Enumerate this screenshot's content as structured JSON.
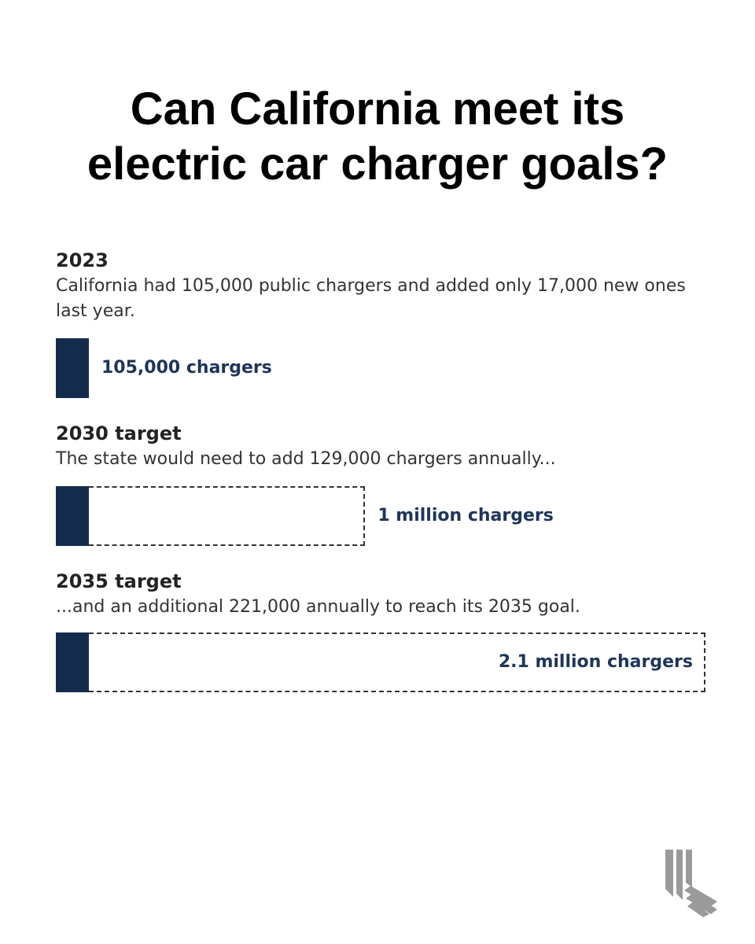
{
  "title_lines": [
    "Can California meet its",
    "electric car charger goals?"
  ],
  "colors": {
    "bar": "#142c4c",
    "label": "#1f3558",
    "outline": "#333333"
  },
  "chart_data": {
    "type": "bar",
    "orientation": "horizontal",
    "unit": "chargers",
    "max": 2100000,
    "bars": [
      {
        "heading": "2023",
        "description": "California had 105,000 public chargers and added only 17,000 new ones last year.",
        "value": 105000,
        "current": 105000,
        "label": "105,000 chargers"
      },
      {
        "heading": "2030 target",
        "description": "The state would need to add 129,000 chargers annually...",
        "value": 1000000,
        "current": 105000,
        "label": "1 million chargers"
      },
      {
        "heading": "2035 target",
        "description": "...and an additional 221,000 annually to reach its 2035 goal.",
        "value": 2100000,
        "current": 105000,
        "label": "2.1 million chargers"
      }
    ]
  },
  "logo": "calmatters-logo-icon"
}
